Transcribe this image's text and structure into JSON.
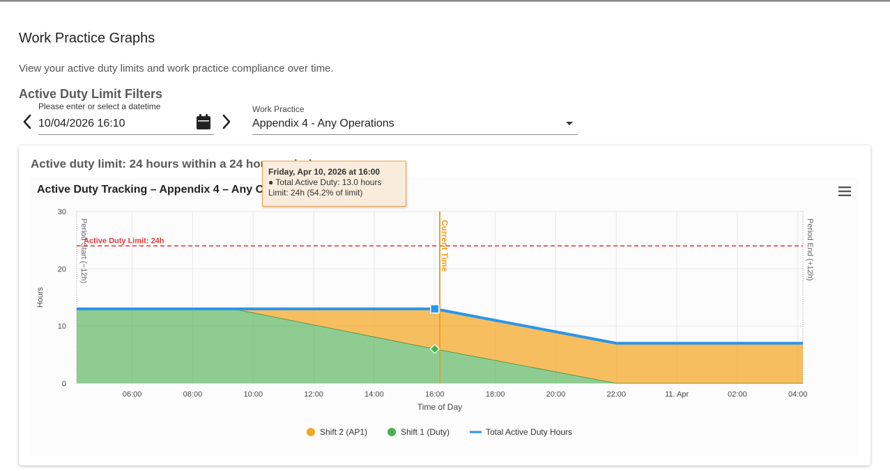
{
  "page": {
    "title": "Work Practice Graphs",
    "subtitle": "View your active duty limits and work practice compliance over time."
  },
  "filters": {
    "title": "Active Duty Limit Filters",
    "datetime_label": "Please enter or select a datetime",
    "datetime_value": "10/04/2026 16:10",
    "work_practice_label": "Work Practice",
    "work_practice_value": "Appendix 4 - Any Operations"
  },
  "card": {
    "title": "Active duty limit: 24 hours within a 24 hour period"
  },
  "icons": {
    "prev": "chevron-left-icon",
    "next": "chevron-right-icon",
    "calendar": "calendar-icon",
    "menu": "hamburger-menu-icon"
  },
  "chart_data": {
    "type": "area",
    "title": "Active Duty Tracking – Appendix 4 – Any Operations – 24h/24h",
    "xlabel": "Time of Day",
    "ylabel": "Hours",
    "xlim": [
      "04:10",
      "04:10"
    ],
    "ylim": [
      0,
      30
    ],
    "yticks": [
      0,
      10,
      20,
      30
    ],
    "x_tick_labels": [
      "06:00",
      "08:00",
      "10:00",
      "12:00",
      "14:00",
      "16:00",
      "18:00",
      "20:00",
      "22:00",
      "11. Apr",
      "02:00",
      "04:00"
    ],
    "grid": true,
    "stacking": "normal",
    "legend_position": "bottom",
    "series": [
      {
        "name": "Shift 2 (AP1)",
        "type": "area",
        "color": "#f5a623",
        "x": [
          "04:10",
          "09:20",
          "16:00",
          "22:00",
          "04:10"
        ],
        "y": [
          0,
          0,
          7,
          7,
          7
        ]
      },
      {
        "name": "Shift 1 (Duty)",
        "type": "area",
        "color": "#4caf50",
        "x": [
          "04:10",
          "09:20",
          "16:00",
          "22:00",
          "04:10"
        ],
        "y": [
          13,
          13,
          6,
          0,
          0
        ]
      },
      {
        "name": "Total Active Duty Hours",
        "type": "line",
        "color": "#2b95e9",
        "x": [
          "04:10",
          "09:20",
          "16:00",
          "22:00",
          "04:10"
        ],
        "y": [
          13,
          13,
          13,
          7,
          7
        ]
      }
    ],
    "plot_lines": [
      {
        "axis": "y",
        "value": 24,
        "label": "Active Duty Limit: 24h",
        "color": "#e53935",
        "style": "dashed"
      },
      {
        "axis": "x",
        "value": "04:10",
        "label": "Period Start (−12h)",
        "color": "#9e9e9e",
        "style": "dotted"
      },
      {
        "axis": "x",
        "value": "16:10",
        "label": "Current Time",
        "color": "#f59c1a",
        "style": "solid"
      },
      {
        "axis": "x",
        "value": "04:10",
        "label": "Period End (+12h)",
        "color": "#9e9e9e",
        "style": "dotted"
      }
    ],
    "tooltip": {
      "title": "Friday, Apr 10, 2026 at 16:00",
      "line1": "● Total Active Duty: 13.0 hours",
      "line2": "Limit: 24h (54.2% of limit)"
    }
  }
}
